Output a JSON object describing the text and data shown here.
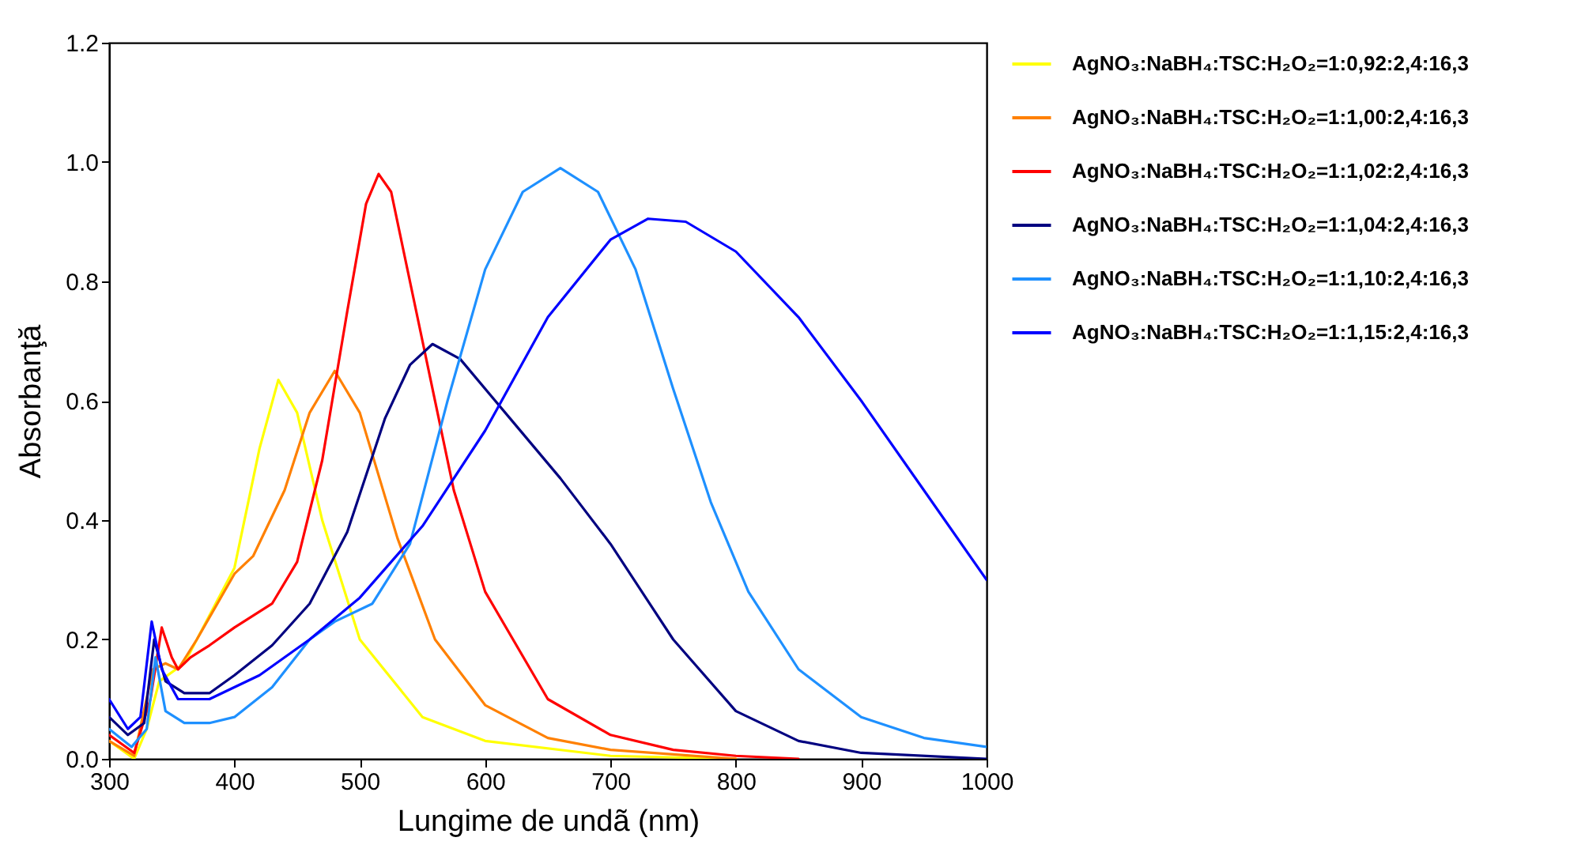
{
  "chart_data": {
    "type": "line",
    "xlabel": "Lungime de undã (nm)",
    "ylabel": "Absorbanţă",
    "xlim": [
      300,
      1000
    ],
    "xticks": [
      300,
      400,
      500,
      600,
      700,
      800,
      900,
      1000
    ],
    "ylim": [
      0,
      1.2
    ],
    "yticks": [
      {
        "value": 0,
        "label": "0.0"
      },
      {
        "value": 0.2,
        "label": "0.2"
      },
      {
        "value": 0.4,
        "label": "0.4"
      },
      {
        "value": 0.6,
        "label": "0.6"
      },
      {
        "value": 0.8,
        "label": "0.8"
      },
      {
        "value": 1.0,
        "label": "1.0"
      },
      {
        "value": 1.2,
        "label": "1.2"
      }
    ],
    "grid": false,
    "legend": "top right",
    "marker": "none",
    "line_style": "solid",
    "series": [
      {
        "name": "AgNO₃:NaBH₄:TSC:H₂O₂=1:0,92:2,4:16,3",
        "color": "#ffff00",
        "x": [
          300,
          320,
          330,
          340,
          360,
          400,
          420,
          435,
          450,
          470,
          500,
          550,
          600,
          700,
          800
        ],
        "values": [
          0.03,
          0.0,
          0.05,
          0.13,
          0.16,
          0.32,
          0.52,
          0.635,
          0.58,
          0.4,
          0.2,
          0.07,
          0.03,
          0.005,
          0.0
        ]
      },
      {
        "name": "AgNO₃:NaBH₄:TSC:H₂O₂=1:1,00:2,4:16,3",
        "color": "#ff8000",
        "x": [
          300,
          320,
          335,
          345,
          355,
          370,
          400,
          415,
          440,
          460,
          480,
          500,
          530,
          560,
          600,
          650,
          700,
          800
        ],
        "values": [
          0.03,
          0.005,
          0.15,
          0.16,
          0.15,
          0.2,
          0.31,
          0.34,
          0.45,
          0.58,
          0.65,
          0.58,
          0.37,
          0.2,
          0.09,
          0.035,
          0.015,
          0.0
        ]
      },
      {
        "name": "AgNO₃:NaBH₄:TSC:H₂O₂=1:1,02:2,4:16,3",
        "color": "#ff0000",
        "x": [
          300,
          320,
          333,
          342,
          350,
          355,
          365,
          380,
          400,
          430,
          450,
          470,
          490,
          505,
          515,
          525,
          550,
          575,
          600,
          650,
          700,
          750,
          800,
          850
        ],
        "values": [
          0.04,
          0.01,
          0.1,
          0.22,
          0.17,
          0.15,
          0.17,
          0.19,
          0.22,
          0.26,
          0.33,
          0.5,
          0.75,
          0.93,
          0.98,
          0.95,
          0.7,
          0.45,
          0.28,
          0.1,
          0.04,
          0.015,
          0.005,
          0.0
        ]
      },
      {
        "name": "AgNO₃:NaBH₄:TSC:H₂O₂=1:1,04:2,4:16,3",
        "color": "#000080",
        "x": [
          300,
          315,
          328,
          336,
          345,
          360,
          380,
          400,
          430,
          460,
          490,
          520,
          540,
          558,
          580,
          620,
          660,
          700,
          750,
          800,
          850,
          900,
          1000
        ],
        "values": [
          0.07,
          0.04,
          0.06,
          0.2,
          0.13,
          0.11,
          0.11,
          0.14,
          0.19,
          0.26,
          0.38,
          0.57,
          0.66,
          0.695,
          0.67,
          0.57,
          0.47,
          0.36,
          0.2,
          0.08,
          0.03,
          0.01,
          0.0
        ]
      },
      {
        "name": "AgNO₃:NaBH₄:TSC:H₂O₂=1:1,10:2,4:16,3",
        "color": "#1e90ff",
        "x": [
          300,
          318,
          330,
          337,
          345,
          360,
          380,
          400,
          430,
          460,
          480,
          510,
          540,
          570,
          600,
          630,
          660,
          690,
          720,
          750,
          780,
          810,
          850,
          900,
          950,
          1000
        ],
        "values": [
          0.05,
          0.02,
          0.05,
          0.17,
          0.08,
          0.06,
          0.06,
          0.07,
          0.12,
          0.2,
          0.23,
          0.26,
          0.36,
          0.6,
          0.82,
          0.95,
          0.99,
          0.95,
          0.82,
          0.62,
          0.43,
          0.28,
          0.15,
          0.07,
          0.035,
          0.02
        ]
      },
      {
        "name": "AgNO₃:NaBH₄:TSC:H₂O₂=1:1,15:2,4:16,3",
        "color": "#0000ff",
        "x": [
          300,
          315,
          325,
          334,
          342,
          355,
          380,
          420,
          460,
          500,
          550,
          600,
          650,
          700,
          730,
          760,
          800,
          850,
          900,
          950,
          1000
        ],
        "values": [
          0.1,
          0.05,
          0.07,
          0.23,
          0.15,
          0.1,
          0.1,
          0.14,
          0.2,
          0.27,
          0.39,
          0.55,
          0.74,
          0.87,
          0.905,
          0.9,
          0.85,
          0.74,
          0.6,
          0.45,
          0.3
        ]
      }
    ]
  }
}
